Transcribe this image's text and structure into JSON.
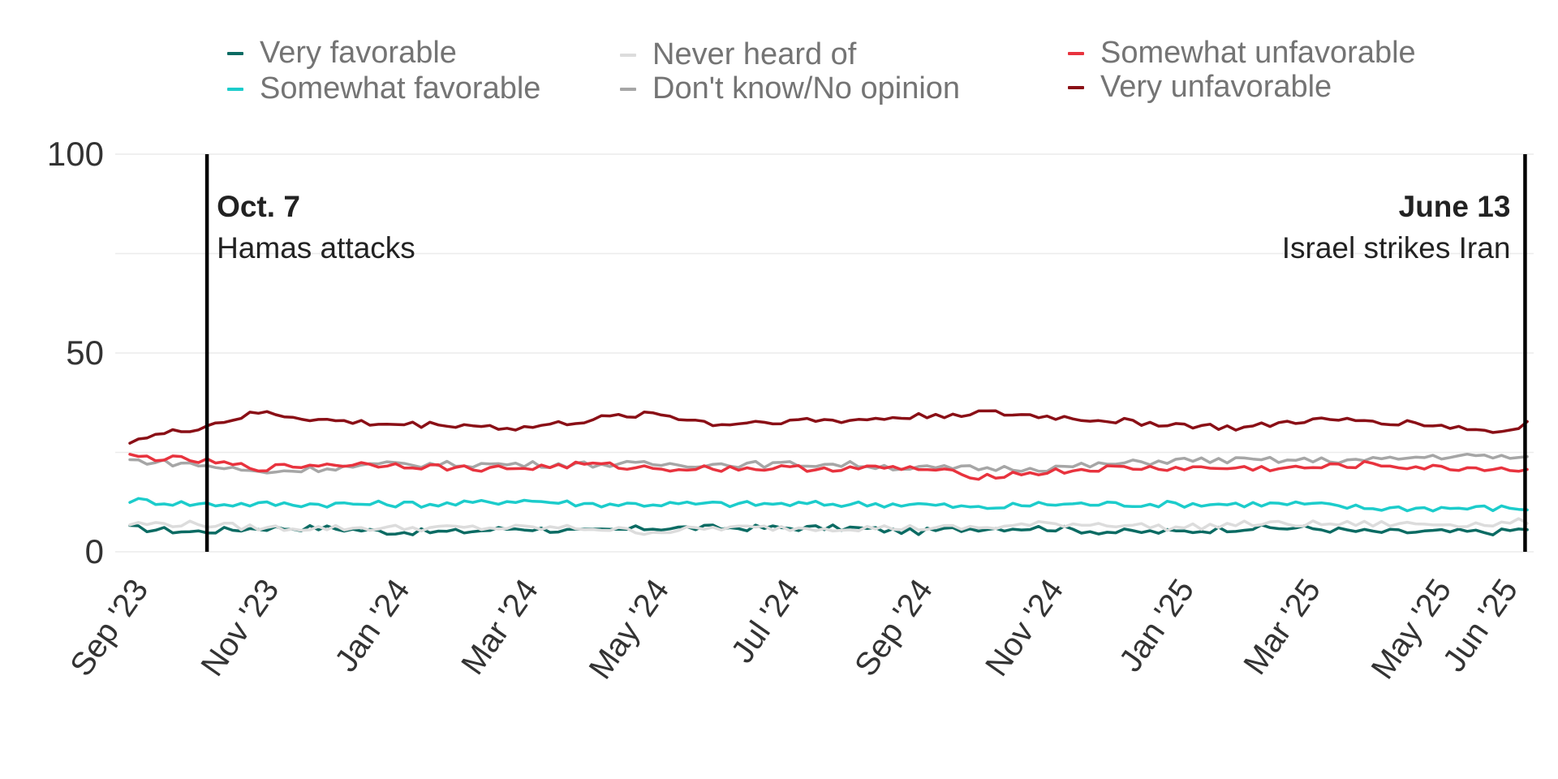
{
  "legend": [
    {
      "label": "Very favorable",
      "color": "#0b6b63"
    },
    {
      "label": "Somewhat favorable",
      "color": "#1ccccb"
    },
    {
      "label": "Never heard of",
      "color": "#dcdcdc"
    },
    {
      "label": "Don't know/No opinion",
      "color": "#a6a6a6"
    },
    {
      "label": "Somewhat unfavorable",
      "color": "#e8333e"
    },
    {
      "label": "Very unfavorable",
      "color": "#8a0f16"
    }
  ],
  "annotations": [
    {
      "date": "2023-10-07",
      "title": "Oct. 7",
      "subtitle": "Hamas attacks",
      "align": "left"
    },
    {
      "date": "2025-06-13",
      "title": "June 13",
      "subtitle": "Israel strikes Iran",
      "align": "right"
    }
  ],
  "chart_data": {
    "type": "line",
    "x_start": "2023-09-01",
    "x_end": "2025-06-17",
    "ylim": [
      0,
      100
    ],
    "y_ticks": [
      0,
      50,
      100
    ],
    "x_ticks": [
      {
        "label": "Sep '23",
        "date": "2023-09-01"
      },
      {
        "label": "Nov '23",
        "date": "2023-11-01"
      },
      {
        "label": "Jan '24",
        "date": "2024-01-01"
      },
      {
        "label": "Mar '24",
        "date": "2024-03-01"
      },
      {
        "label": "May '24",
        "date": "2024-05-01"
      },
      {
        "label": "Jul '24",
        "date": "2024-07-01"
      },
      {
        "label": "Sep '24",
        "date": "2024-09-01"
      },
      {
        "label": "Nov '24",
        "date": "2024-11-01"
      },
      {
        "label": "Jan '25",
        "date": "2025-01-01"
      },
      {
        "label": "Mar '25",
        "date": "2025-03-01"
      },
      {
        "label": "May '25",
        "date": "2025-05-01"
      },
      {
        "label": "Jun '25",
        "date": "2025-06-01"
      }
    ],
    "grid": true,
    "series": [
      {
        "name": "Very favorable",
        "color": "#0b6b63",
        "x": [
          "2023-09-01",
          "2023-10-01",
          "2023-11-01",
          "2023-12-01",
          "2024-01-01",
          "2024-02-01",
          "2024-03-01",
          "2024-04-01",
          "2024-05-01",
          "2024-06-01",
          "2024-07-01",
          "2024-08-01",
          "2024-09-01",
          "2024-10-01",
          "2024-11-01",
          "2024-12-01",
          "2025-01-01",
          "2025-02-01",
          "2025-03-01",
          "2025-04-01",
          "2025-05-01",
          "2025-06-01",
          "2025-06-17"
        ],
        "y": [
          6,
          5,
          6,
          6,
          5,
          5,
          6,
          5,
          6,
          6,
          6,
          6,
          5,
          6,
          6,
          5,
          5,
          6,
          6,
          5,
          5,
          5,
          6
        ]
      },
      {
        "name": "Somewhat favorable",
        "color": "#1ccccb",
        "x": [
          "2023-09-01",
          "2023-10-01",
          "2023-11-01",
          "2023-12-01",
          "2024-01-01",
          "2024-02-01",
          "2024-03-01",
          "2024-04-01",
          "2024-05-01",
          "2024-06-01",
          "2024-07-01",
          "2024-08-01",
          "2024-09-01",
          "2024-10-01",
          "2024-11-01",
          "2024-12-01",
          "2025-01-01",
          "2025-02-01",
          "2025-03-01",
          "2025-04-01",
          "2025-05-01",
          "2025-06-01",
          "2025-06-17"
        ],
        "y": [
          13,
          12,
          12,
          12,
          12,
          12,
          13,
          12,
          12,
          12,
          12,
          12,
          12,
          11,
          12,
          12,
          12,
          12,
          12,
          11,
          11,
          11,
          11
        ]
      },
      {
        "name": "Never heard of",
        "color": "#dcdcdc",
        "x": [
          "2023-09-01",
          "2023-10-01",
          "2023-11-01",
          "2023-12-01",
          "2024-01-01",
          "2024-02-01",
          "2024-03-01",
          "2024-04-01",
          "2024-05-01",
          "2024-06-01",
          "2024-07-01",
          "2024-08-01",
          "2024-09-01",
          "2024-10-01",
          "2024-11-01",
          "2024-12-01",
          "2025-01-01",
          "2025-02-01",
          "2025-03-01",
          "2025-04-01",
          "2025-05-01",
          "2025-06-01",
          "2025-06-17"
        ],
        "y": [
          7,
          7,
          6,
          6,
          6,
          6,
          6,
          6,
          5,
          6,
          6,
          6,
          6,
          6,
          7,
          7,
          6,
          7,
          7,
          7,
          7,
          7,
          8
        ]
      },
      {
        "name": "Don't know/No opinion",
        "color": "#a6a6a6",
        "x": [
          "2023-09-01",
          "2023-10-01",
          "2023-11-01",
          "2023-12-01",
          "2024-01-01",
          "2024-02-01",
          "2024-03-01",
          "2024-04-01",
          "2024-05-01",
          "2024-06-01",
          "2024-07-01",
          "2024-08-01",
          "2024-09-01",
          "2024-10-01",
          "2024-11-01",
          "2024-12-01",
          "2025-01-01",
          "2025-02-01",
          "2025-03-01",
          "2025-04-01",
          "2025-05-01",
          "2025-06-01",
          "2025-06-17"
        ],
        "y": [
          23,
          22,
          20,
          21,
          22,
          22,
          22,
          22,
          22,
          22,
          22,
          22,
          21,
          21,
          21,
          22,
          23,
          23,
          23,
          23,
          24,
          24,
          23
        ]
      },
      {
        "name": "Somewhat unfavorable",
        "color": "#e8333e",
        "x": [
          "2023-09-01",
          "2023-10-01",
          "2023-11-01",
          "2023-12-01",
          "2024-01-01",
          "2024-02-01",
          "2024-03-01",
          "2024-04-01",
          "2024-05-01",
          "2024-06-01",
          "2024-07-01",
          "2024-08-01",
          "2024-09-01",
          "2024-10-01",
          "2024-11-01",
          "2024-12-01",
          "2025-01-01",
          "2025-02-01",
          "2025-03-01",
          "2025-04-01",
          "2025-05-01",
          "2025-06-01",
          "2025-06-17"
        ],
        "y": [
          24,
          23,
          21,
          22,
          22,
          21,
          21,
          22,
          21,
          21,
          21,
          21,
          21,
          19,
          20,
          21,
          21,
          21,
          21,
          22,
          21,
          21,
          20
        ]
      },
      {
        "name": "Very unfavorable",
        "color": "#8a0f16",
        "x": [
          "2023-09-01",
          "2023-10-01",
          "2023-11-01",
          "2023-12-01",
          "2024-01-01",
          "2024-02-01",
          "2024-03-01",
          "2024-04-01",
          "2024-05-01",
          "2024-06-01",
          "2024-07-01",
          "2024-08-01",
          "2024-09-01",
          "2024-10-01",
          "2024-11-01",
          "2024-12-01",
          "2025-01-01",
          "2025-02-01",
          "2025-03-01",
          "2025-04-01",
          "2025-05-01",
          "2025-06-01",
          "2025-06-17"
        ],
        "y": [
          28,
          31,
          35,
          33,
          32,
          32,
          31,
          33,
          35,
          32,
          33,
          33,
          34,
          35,
          34,
          33,
          32,
          31,
          33,
          33,
          32,
          30,
          33
        ]
      }
    ]
  }
}
